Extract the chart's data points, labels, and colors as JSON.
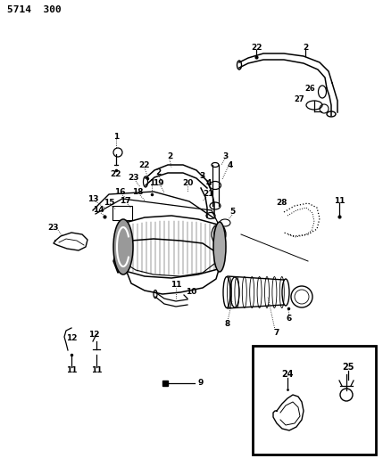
{
  "title": "5714  300",
  "bg_color": "#ffffff",
  "lc": "#000000",
  "figsize": [
    4.29,
    5.33
  ],
  "dpi": 100
}
